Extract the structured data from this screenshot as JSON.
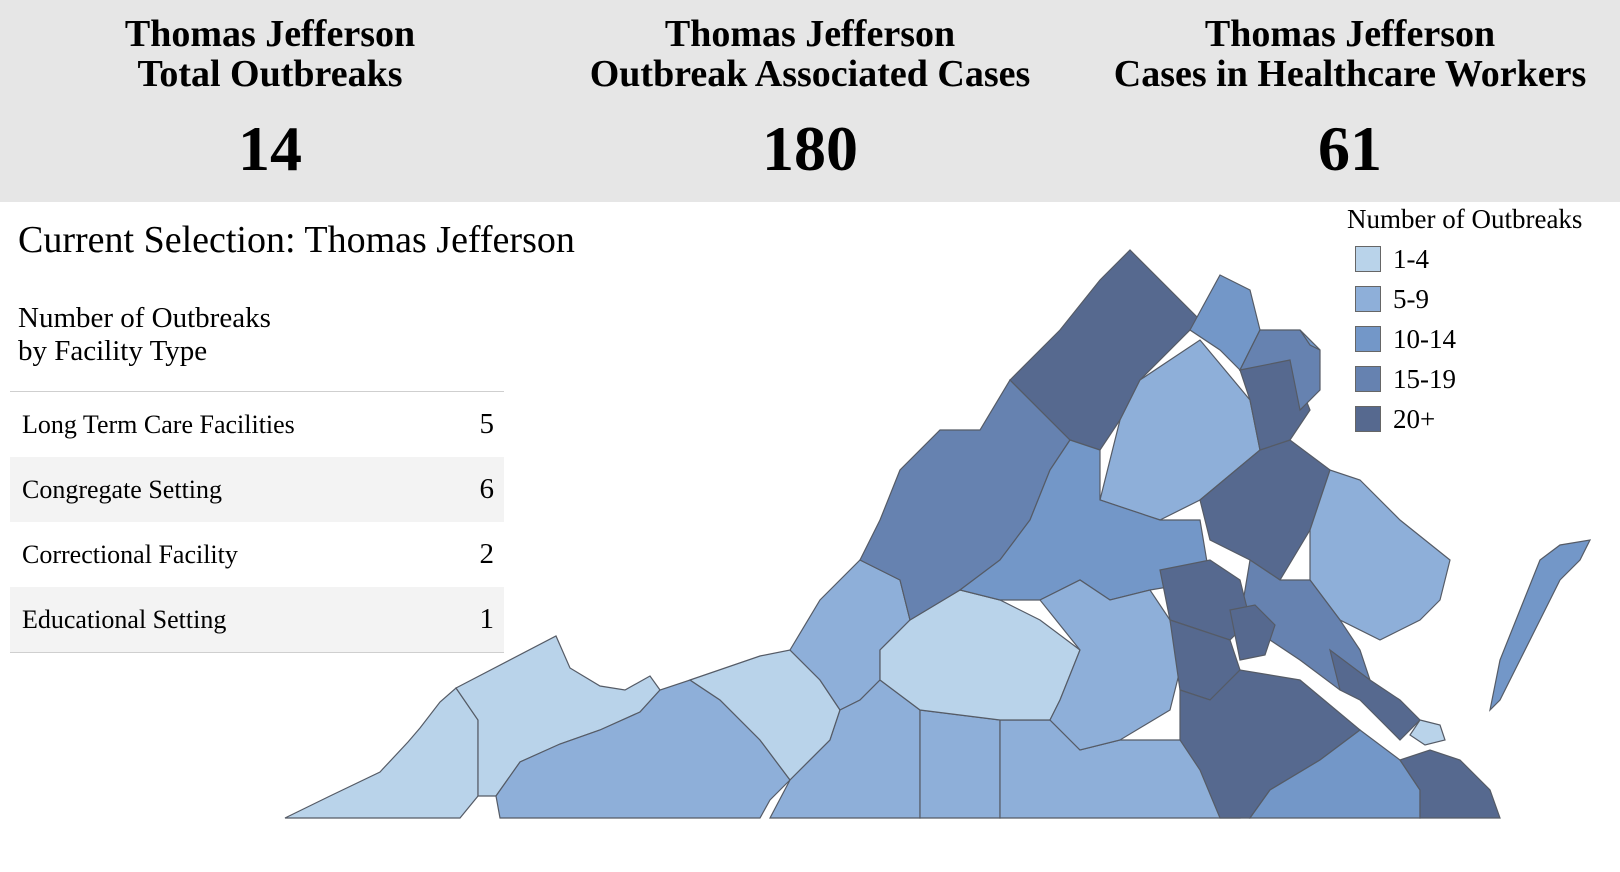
{
  "stats": [
    {
      "title_line1": "Thomas Jefferson",
      "title_line2": "Total Outbreaks",
      "value": "14"
    },
    {
      "title_line1": "Thomas Jefferson",
      "title_line2": "Outbreak Associated Cases",
      "value": "180"
    },
    {
      "title_line1": "Thomas Jefferson",
      "title_line2": "Cases in Healthcare Workers",
      "value": "61"
    }
  ],
  "selection": {
    "text": "Current Selection: Thomas Jefferson"
  },
  "facility": {
    "heading_line1": "Number of Outbreaks",
    "heading_line2": "by Facility Type",
    "rows": [
      {
        "label": "Long Term Care Facilities",
        "count": "5"
      },
      {
        "label": "Congregate Setting",
        "count": "6"
      },
      {
        "label": "Correctional Facility",
        "count": "2"
      },
      {
        "label": "Educational Setting",
        "count": "1"
      }
    ]
  },
  "legend": {
    "title": "Number of Outbreaks",
    "items": [
      {
        "label": "1-4",
        "color": "#b9d3ea"
      },
      {
        "label": "5-9",
        "color": "#8eafd9"
      },
      {
        "label": "10-14",
        "color": "#7397c8"
      },
      {
        "label": "15-19",
        "color": "#6682b0"
      },
      {
        "label": "20+",
        "color": "#56698f"
      }
    ]
  },
  "map": {
    "districts": [
      {
        "name": "far-southwest",
        "bin": 0
      },
      {
        "name": "cumberland-plateau",
        "bin": 0
      },
      {
        "name": "mount-rogers",
        "bin": 1
      },
      {
        "name": "new-river",
        "bin": 0
      },
      {
        "name": "roanoke",
        "bin": 1
      },
      {
        "name": "west-piedmont",
        "bin": 1
      },
      {
        "name": "pittsylvania-danville",
        "bin": 1
      },
      {
        "name": "southside",
        "bin": 1
      },
      {
        "name": "central-virginia",
        "bin": 0
      },
      {
        "name": "central-shenandoah",
        "bin": 3
      },
      {
        "name": "lord-fairfax",
        "bin": 4
      },
      {
        "name": "rappahannock-rapidan",
        "bin": 1
      },
      {
        "name": "thomas-jefferson",
        "bin": 2
      },
      {
        "name": "piedmont",
        "bin": 1
      },
      {
        "name": "loudoun",
        "bin": 2
      },
      {
        "name": "prince-william",
        "bin": 4
      },
      {
        "name": "rappahannock",
        "bin": 4
      },
      {
        "name": "fairfax",
        "bin": 3
      },
      {
        "name": "arlington",
        "bin": 2
      },
      {
        "name": "three-rivers",
        "bin": 1
      },
      {
        "name": "chickahominy",
        "bin": 3
      },
      {
        "name": "henrico",
        "bin": 4
      },
      {
        "name": "chesterfield",
        "bin": 4
      },
      {
        "name": "richmond",
        "bin": 4
      },
      {
        "name": "crater",
        "bin": 4
      },
      {
        "name": "peninsula",
        "bin": 4
      },
      {
        "name": "western-tidewater",
        "bin": 2
      },
      {
        "name": "virginia-beach",
        "bin": 4
      },
      {
        "name": "eastern-shore",
        "bin": 2
      },
      {
        "name": "hampton",
        "bin": 0
      }
    ]
  }
}
